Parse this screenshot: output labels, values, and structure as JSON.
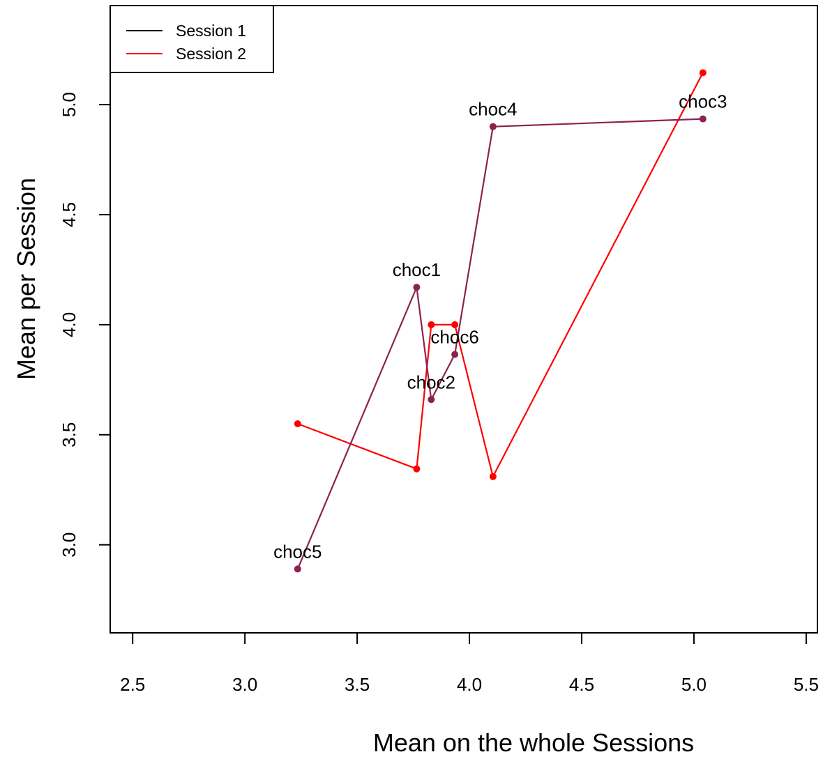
{
  "chart_data": {
    "type": "line",
    "title": "",
    "xlabel": "Mean on the whole Sessions",
    "ylabel": "Mean per Session",
    "xlim": [
      2.4,
      5.55
    ],
    "ylim": [
      2.6,
      5.45
    ],
    "xticks": [
      "2.5",
      "3.0",
      "3.5",
      "4.0",
      "4.5",
      "5.0",
      "5.5"
    ],
    "yticks": [
      "3.0",
      "3.5",
      "4.0",
      "4.5",
      "5.0"
    ],
    "grid": false,
    "legend": {
      "position": "top-left"
    },
    "series": [
      {
        "name": "Session 1",
        "legend_color": "#000000",
        "color": "#8b2252",
        "x": [
          3.235,
          3.765,
          3.83,
          3.935,
          4.105,
          5.04
        ],
        "y": [
          2.89,
          4.17,
          3.66,
          3.865,
          4.9,
          4.935
        ]
      },
      {
        "name": "Session 2",
        "legend_color": "#ff0000",
        "color": "#ff0000",
        "x": [
          3.235,
          3.765,
          3.83,
          3.935,
          4.105,
          5.04
        ],
        "y": [
          3.55,
          3.345,
          4.0,
          4.0,
          3.31,
          5.145
        ]
      }
    ],
    "point_labels": [
      {
        "text": "choc5",
        "x": 3.235,
        "y": 2.89
      },
      {
        "text": "choc1",
        "x": 3.765,
        "y": 4.17
      },
      {
        "text": "choc2",
        "x": 3.83,
        "y": 3.66
      },
      {
        "text": "choc6",
        "x": 3.935,
        "y": 3.865
      },
      {
        "text": "choc4",
        "x": 4.105,
        "y": 4.9
      },
      {
        "text": "choc3",
        "x": 5.04,
        "y": 4.935
      }
    ]
  }
}
